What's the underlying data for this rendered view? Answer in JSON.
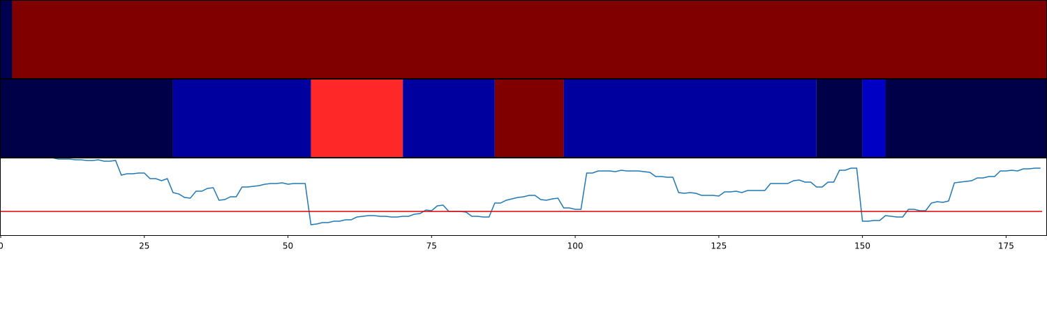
{
  "chart_data": [
    {
      "type": "strip",
      "xlim": [
        0,
        182
      ],
      "starts": [
        0,
        2
      ],
      "ends": [
        2,
        182
      ],
      "colors": [
        "#000050",
        "#800000"
      ]
    },
    {
      "type": "strip",
      "xlim": [
        0,
        182
      ],
      "starts": [
        0,
        30,
        54,
        70,
        86,
        98,
        142,
        150,
        154
      ],
      "ends": [
        30,
        54,
        70,
        86,
        98,
        142,
        150,
        154,
        182
      ],
      "colors": [
        "#000048",
        "#00009f",
        "#ff2828",
        "#00009f",
        "#800000",
        "#00009f",
        "#000048",
        "#0000c4",
        "#000048"
      ]
    },
    {
      "type": "line",
      "xlim": [
        0,
        182
      ],
      "ylim": [
        0,
        111
      ],
      "xticks": [
        0,
        25,
        50,
        75,
        100,
        125,
        150,
        175
      ],
      "color": "#1f77b4",
      "hline": 34,
      "hline_color": "#e00000",
      "values": [
        111,
        111,
        111,
        111,
        111,
        111,
        111,
        111,
        111,
        111,
        109,
        109,
        109,
        108,
        108,
        107,
        107,
        108,
        106,
        106,
        107,
        86,
        88,
        88,
        89,
        89,
        81,
        81,
        78,
        81,
        61,
        59,
        54,
        53,
        63,
        63,
        67,
        68,
        50,
        51,
        55,
        55,
        69,
        69,
        70,
        71,
        73,
        74,
        74,
        75,
        73,
        74,
        74,
        74,
        15,
        16,
        18,
        18,
        20,
        20,
        22,
        22,
        26,
        27,
        28,
        28,
        27,
        27,
        26,
        26,
        27,
        27,
        30,
        31,
        36,
        35,
        42,
        43,
        34,
        34,
        34,
        33,
        27,
        27,
        26,
        26,
        46,
        46,
        50,
        52,
        54,
        55,
        57,
        57,
        51,
        50,
        52,
        53,
        39,
        39,
        37,
        37,
        89,
        89,
        92,
        92,
        92,
        91,
        93,
        92,
        92,
        92,
        91,
        90,
        84,
        84,
        83,
        83,
        61,
        60,
        61,
        60,
        57,
        57,
        57,
        56,
        62,
        62,
        63,
        61,
        64,
        64,
        64,
        64,
        74,
        74,
        74,
        74,
        78,
        79,
        76,
        76,
        69,
        69,
        76,
        76,
        93,
        93,
        96,
        96,
        20,
        20,
        21,
        21,
        28,
        27,
        26,
        26,
        37,
        37,
        35,
        35,
        46,
        48,
        47,
        49,
        75,
        76,
        77,
        78,
        82,
        82,
        84,
        84,
        92,
        92,
        93,
        92,
        95,
        95,
        96,
        96
      ]
    }
  ]
}
